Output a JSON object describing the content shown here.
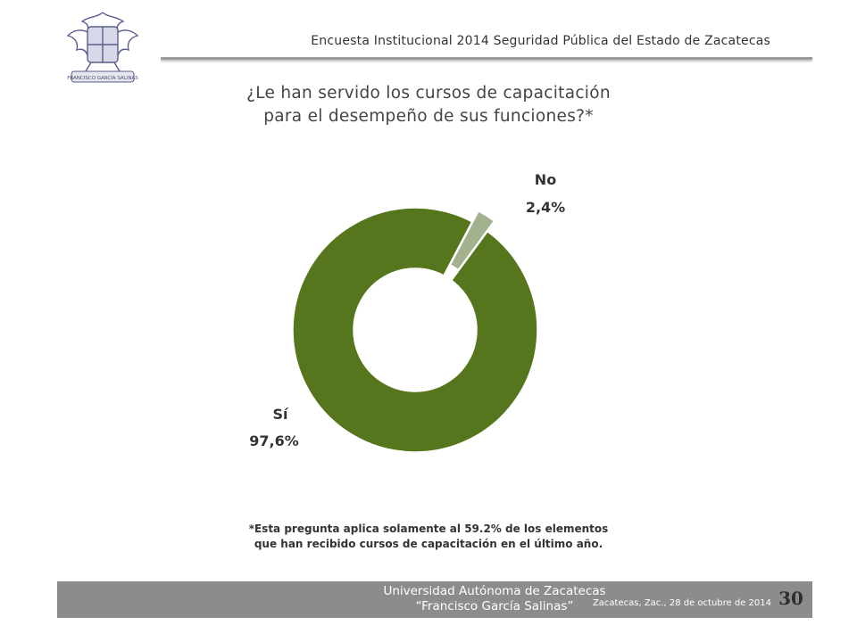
{
  "header": {
    "title": "Encuesta Institucional 2014 Seguridad Pública del Estado de Zacatecas",
    "logo_name": "university-seal-icon",
    "logo_text": "FRANCISCO GARCÍA SALINAS"
  },
  "question": {
    "line1": "¿Le han servido los cursos de capacitación",
    "line2": "para el desempeño de sus funciones?*"
  },
  "chart_data": {
    "type": "pie",
    "variant": "donut",
    "categories": [
      "Sí",
      "No"
    ],
    "values": [
      97.6,
      2.4
    ],
    "value_labels": [
      "97,6%",
      "2,4%"
    ],
    "colors": [
      "#55761c",
      "#a3b18c"
    ],
    "exploded": [
      "No"
    ],
    "legend": "none"
  },
  "footnote": {
    "line1": "*Esta pregunta aplica solamente al 59.2% de los elementos",
    "line2": "que han recibido cursos de capacitación en el último año."
  },
  "footer": {
    "university": "Universidad Autónoma de Zacatecas",
    "university_sub": "“Francisco García Salinas”",
    "date": "Zacatecas, Zac., 28 de octubre de 2014",
    "page": "30",
    "bar_color": "#8c8c8c"
  }
}
